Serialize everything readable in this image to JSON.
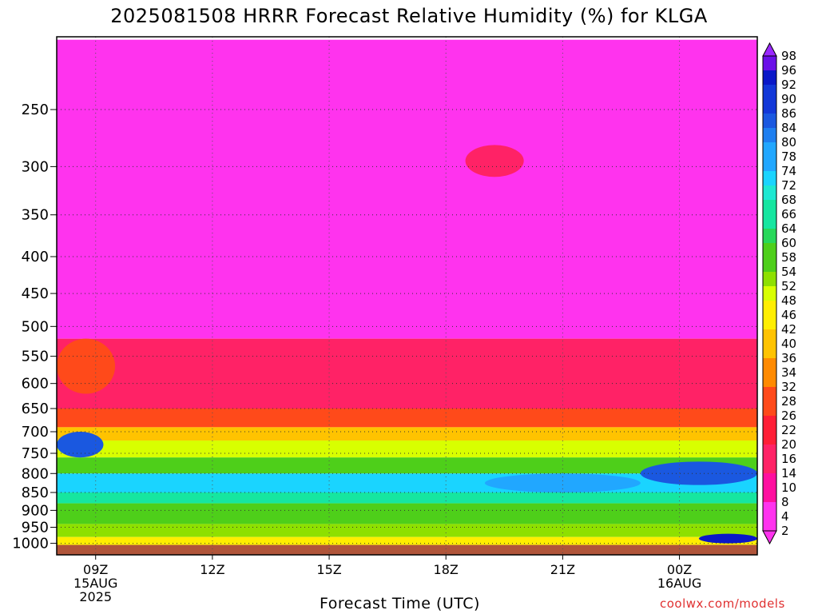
{
  "title": "2025081508 HRRR Forecast Relative Humidity (%) for KLGA",
  "credit": "coolwx.com/models",
  "chart_data": {
    "type": "heatmap",
    "title": "2025081508 HRRR Forecast Relative Humidity (%) for KLGA",
    "xlabel": "Forecast Time (UTC)",
    "ylabel": "",
    "x_ticks": [
      {
        "hour": 9,
        "lines": [
          "09Z",
          "15AUG",
          "2025"
        ]
      },
      {
        "hour": 12,
        "lines": [
          "12Z"
        ]
      },
      {
        "hour": 15,
        "lines": [
          "15Z"
        ]
      },
      {
        "hour": 18,
        "lines": [
          "18Z"
        ]
      },
      {
        "hour": 21,
        "lines": [
          "21Z"
        ]
      },
      {
        "hour": 24,
        "lines": [
          "00Z",
          "16AUG"
        ]
      }
    ],
    "xlim_hours": [
      8,
      26
    ],
    "y_ticks": [
      250,
      300,
      350,
      400,
      450,
      500,
      550,
      600,
      650,
      700,
      750,
      800,
      850,
      900,
      950,
      1000
    ],
    "ylim_hpa": [
      200,
      1020
    ],
    "y_scale": "log",
    "grid": true,
    "colorbar_levels": [
      2,
      4,
      8,
      10,
      14,
      16,
      20,
      22,
      26,
      28,
      32,
      34,
      36,
      40,
      42,
      46,
      48,
      52,
      54,
      58,
      60,
      64,
      66,
      68,
      72,
      74,
      78,
      80,
      84,
      86,
      90,
      92,
      96,
      98
    ],
    "layers": [
      {
        "from_hpa": 200,
        "to_hpa": 520,
        "rh": 6
      },
      {
        "from_hpa": 520,
        "to_hpa": 650,
        "rh": 18
      },
      {
        "from_hpa": 650,
        "to_hpa": 690,
        "rh": 26
      },
      {
        "from_hpa": 690,
        "to_hpa": 720,
        "rh": 42
      },
      {
        "from_hpa": 720,
        "to_hpa": 760,
        "rh": 50
      },
      {
        "from_hpa": 760,
        "to_hpa": 800,
        "rh": 56
      },
      {
        "from_hpa": 800,
        "to_hpa": 850,
        "rh": 72
      },
      {
        "from_hpa": 850,
        "to_hpa": 880,
        "rh": 66
      },
      {
        "from_hpa": 880,
        "to_hpa": 940,
        "rh": 58
      },
      {
        "from_hpa": 940,
        "to_hpa": 980,
        "rh": 52
      },
      {
        "from_hpa": 980,
        "to_hpa": 1005,
        "rh": 46
      }
    ],
    "features": [
      {
        "hour_from": 8,
        "hour_to": 9.2,
        "hpa_from": 700,
        "hpa_to": 760,
        "rh": 86
      },
      {
        "hour_from": 23,
        "hour_to": 26,
        "hpa_from": 770,
        "hpa_to": 830,
        "rh": 84
      },
      {
        "hour_from": 24.5,
        "hour_to": 26,
        "hpa_from": 970,
        "hpa_to": 1000,
        "rh": 92
      },
      {
        "hour_from": 19,
        "hour_to": 23,
        "hpa_from": 800,
        "hpa_to": 850,
        "rh": 78
      },
      {
        "hour_from": 8,
        "hour_to": 9.5,
        "hpa_from": 520,
        "hpa_to": 620,
        "rh": 30
      },
      {
        "hour_from": 18.5,
        "hour_to": 20,
        "hpa_from": 280,
        "hpa_to": 310,
        "rh": 18
      }
    ],
    "ground_color": "#b0553a"
  }
}
